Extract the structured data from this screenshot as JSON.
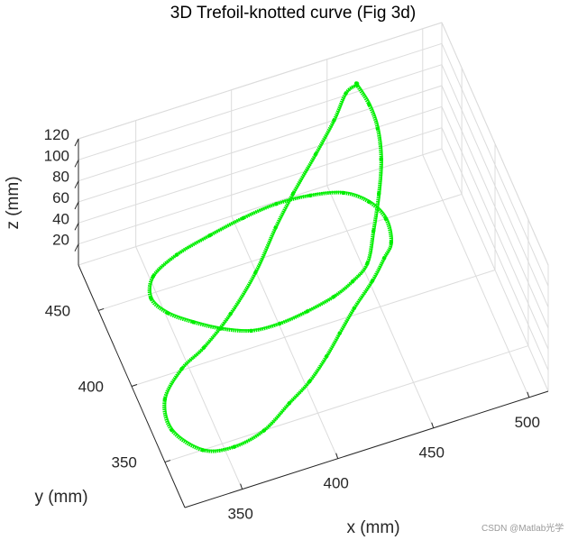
{
  "chart_data": {
    "type": "scatter",
    "projection": "3d",
    "title": "3D Trefoil-knotted curve (Fig 3d)",
    "xlabel": "x (mm)",
    "ylabel": "y (mm)",
    "zlabel": "z (mm)",
    "xlim": [
      320,
      510
    ],
    "ylim": [
      320,
      480
    ],
    "zlim": [
      0,
      120
    ],
    "xticks": [
      350,
      400,
      450,
      500
    ],
    "yticks": [
      350,
      400,
      450
    ],
    "zticks": [
      20,
      40,
      60,
      80,
      100,
      120
    ],
    "xtick_labels": [
      "350",
      "400",
      "450",
      "500"
    ],
    "ytick_labels": [
      "350",
      "400",
      "450"
    ],
    "ztick_labels": [
      "20",
      "40",
      "60",
      "80",
      "100",
      "120"
    ],
    "grid": true,
    "series": [
      {
        "color": "#00ee00",
        "marker": "point",
        "x": [
          462,
          456,
          447,
          434,
          418,
          405,
          389,
          371,
          354,
          341,
          329,
          327,
          337,
          351,
          367,
          383,
          396,
          408,
          418,
          429,
          442,
          451,
          455,
          455,
          449,
          438,
          422,
          405,
          388,
          371,
          354,
          341,
          337,
          343,
          354,
          366,
          380,
          395,
          410,
          425,
          436,
          445,
          452,
          459,
          464,
          466,
          465,
          462
        ],
        "y": [
          470,
          469,
          461,
          451,
          439,
          428,
          412,
          398,
          389,
          385,
          376,
          360,
          342,
          335,
          336,
          344,
          351,
          360,
          369,
          379,
          389,
          397,
          398,
          406,
          414,
          421,
          425,
          427,
          428,
          429,
          430,
          428,
          420,
          412,
          405,
          398,
          393,
          393,
          395,
          398,
          401,
          405,
          416,
          428,
          439,
          450,
          460,
          470
        ],
        "z": [
          103,
          100,
          91,
          81,
          70,
          61,
          51,
          42,
          33,
          26,
          17,
          12,
          13,
          18,
          23,
          28,
          31,
          35,
          38,
          41,
          45,
          50,
          61,
          72,
          80,
          85,
          86,
          85,
          80,
          72,
          62,
          52,
          45,
          39,
          34,
          31,
          28,
          26,
          26,
          27,
          31,
          37,
          48,
          62,
          76,
          88,
          97,
          103
        ]
      }
    ]
  },
  "watermark": "CSDN @Matlab光学"
}
